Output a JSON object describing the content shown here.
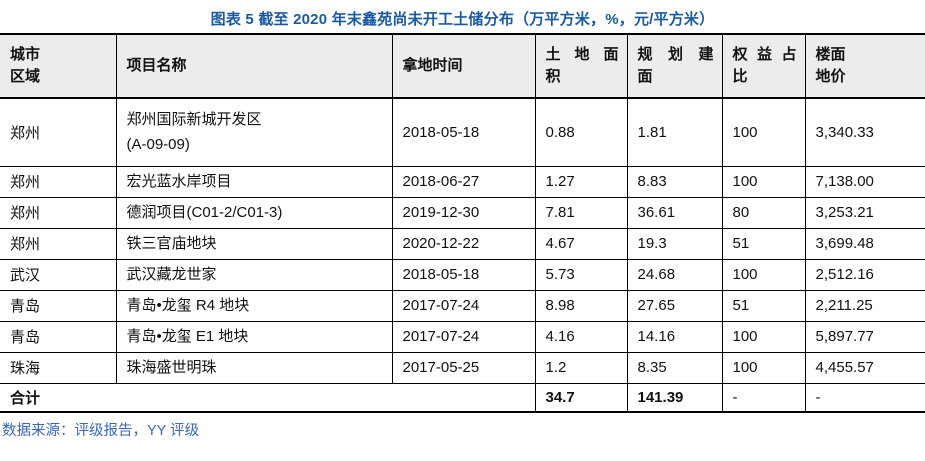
{
  "title": "图表 5 截至 2020 年末鑫苑尚未开工土储分布（万平方米，%，元/平方米）",
  "source_note": "数据来源：评级报告，YY 评级",
  "colors": {
    "title_blue": "#1C5AA0",
    "source_blue": "#3A67B8",
    "header_bg": "#ECECEC",
    "border": "#000000"
  },
  "table": {
    "columns": [
      {
        "id": "city",
        "label": "城市区域",
        "lines": [
          "城市",
          "区域"
        ],
        "justify": false
      },
      {
        "id": "project",
        "label": "项目名称",
        "lines": [
          "项目名称"
        ],
        "justify": false
      },
      {
        "id": "date",
        "label": "拿地时间",
        "lines": [
          "拿地时间"
        ],
        "justify": false
      },
      {
        "id": "land_area",
        "label": "土地面积",
        "lines": [
          "土地面",
          "积"
        ],
        "justify": true
      },
      {
        "id": "planned_gfa",
        "label": "规划建面",
        "lines": [
          "规划建",
          "面"
        ],
        "justify": true
      },
      {
        "id": "equity",
        "label": "权益占比",
        "lines": [
          "权益占",
          "比"
        ],
        "justify": true
      },
      {
        "id": "floor_price",
        "label": "楼面地价",
        "lines": [
          "楼面",
          "地价"
        ],
        "justify": false
      }
    ],
    "rows": [
      {
        "city": "郑州",
        "project_lines": [
          "郑州国际新城开发区",
          "(A-09-09)"
        ],
        "date": "2018-05-18",
        "land_area": "0.88",
        "planned_gfa": "1.81",
        "equity": "100",
        "floor_price": "3,340.33"
      },
      {
        "city": "郑州",
        "project_lines": [
          "宏光蓝水岸项目"
        ],
        "date": "2018-06-27",
        "land_area": "1.27",
        "planned_gfa": "8.83",
        "equity": "100",
        "floor_price": "7,138.00"
      },
      {
        "city": "郑州",
        "project_lines": [
          "德润项目(C01-2/C01-3)"
        ],
        "date": "2019-12-30",
        "land_area": "7.81",
        "planned_gfa": "36.61",
        "equity": "80",
        "floor_price": "3,253.21"
      },
      {
        "city": "郑州",
        "project_lines": [
          "铁三官庙地块"
        ],
        "date": "2020-12-22",
        "land_area": "4.67",
        "planned_gfa": "19.3",
        "equity": "51",
        "floor_price": "3,699.48"
      },
      {
        "city": "武汉",
        "project_lines": [
          "武汉藏龙世家"
        ],
        "date": "2018-05-18",
        "land_area": "5.73",
        "planned_gfa": "24.68",
        "equity": "100",
        "floor_price": "2,512.16"
      },
      {
        "city": "青岛",
        "project_lines": [
          "青岛•龙玺 R4 地块"
        ],
        "date": "2017-07-24",
        "land_area": "8.98",
        "planned_gfa": "27.65",
        "equity": "51",
        "floor_price": "2,211.25"
      },
      {
        "city": "青岛",
        "project_lines": [
          "青岛•龙玺 E1 地块"
        ],
        "date": "2017-07-24",
        "land_area": "4.16",
        "planned_gfa": "14.16",
        "equity": "100",
        "floor_price": "5,897.77"
      },
      {
        "city": "珠海",
        "project_lines": [
          "珠海盛世明珠"
        ],
        "date": "2017-05-25",
        "land_area": "1.2",
        "planned_gfa": "8.35",
        "equity": "100",
        "floor_price": "4,455.57"
      }
    ],
    "total_row": {
      "label": "合计",
      "land_area": "34.7",
      "planned_gfa": "141.39",
      "equity": "-",
      "floor_price": "-"
    }
  }
}
